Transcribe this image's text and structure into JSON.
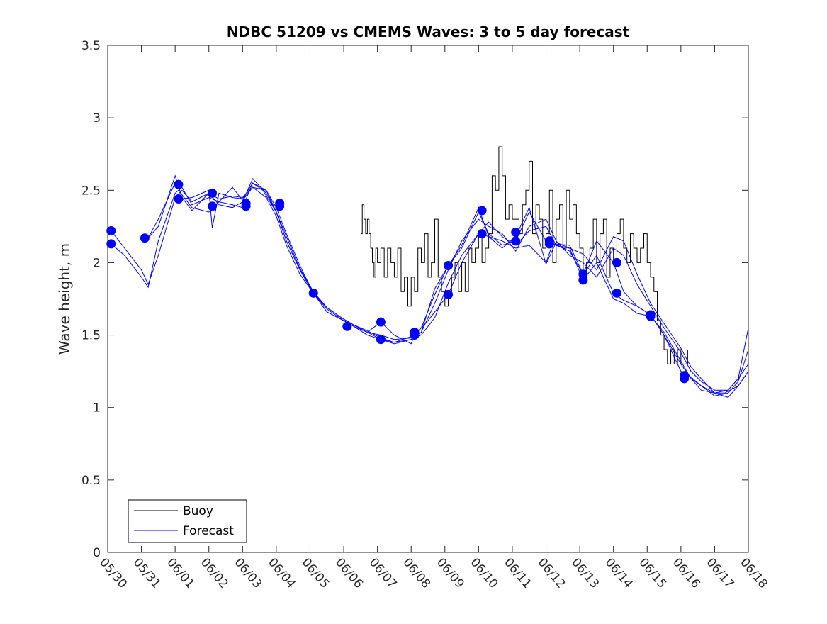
{
  "chart_data": {
    "type": "line",
    "title": "NDBC 51209 vs CMEMS Waves: 3 to 5 day forecast",
    "xlabel": "",
    "ylabel": "Wave height, m",
    "x_tick_labels": [
      "05/30",
      "05/31",
      "06/01",
      "06/02",
      "06/03",
      "06/04",
      "06/05",
      "06/06",
      "06/07",
      "06/08",
      "06/09",
      "06/10",
      "06/11",
      "06/12",
      "06/13",
      "06/14",
      "06/15",
      "06/16",
      "06/17",
      "06/18"
    ],
    "y_ticks": [
      0,
      0.5,
      1,
      1.5,
      2,
      2.5,
      3,
      3.5
    ],
    "y_tick_labels": [
      "0",
      "0.5",
      "1",
      "1.5",
      "2",
      "2.5",
      "3",
      "3.5"
    ],
    "xlim": [
      0,
      19
    ],
    "ylim": [
      0,
      3.5
    ],
    "grid": false,
    "legend_position": "bottom-left",
    "legend": [
      {
        "label": "Buoy",
        "color": "#000000"
      },
      {
        "label": "Forecast",
        "color": "#0000ff"
      }
    ],
    "colors": {
      "buoy": "#000000",
      "forecast": "#0000ff"
    },
    "series": [
      {
        "name": "Buoy",
        "style": "line",
        "x": [
          7.5,
          7.55,
          7.6,
          7.65,
          7.7,
          7.75,
          7.8,
          7.85,
          7.9,
          7.95,
          8.0,
          8.1,
          8.2,
          8.3,
          8.4,
          8.5,
          8.6,
          8.7,
          8.8,
          8.9,
          9.0,
          9.1,
          9.2,
          9.3,
          9.4,
          9.5,
          9.6,
          9.7,
          9.8,
          9.9,
          10.0,
          10.1,
          10.2,
          10.3,
          10.4,
          10.5,
          10.6,
          10.7,
          10.8,
          10.9,
          11.0,
          11.1,
          11.2,
          11.3,
          11.4,
          11.5,
          11.6,
          11.7,
          11.8,
          11.9,
          12.0,
          12.1,
          12.2,
          12.3,
          12.4,
          12.5,
          12.6,
          12.7,
          12.8,
          12.9,
          13.0,
          13.1,
          13.2,
          13.3,
          13.4,
          13.5,
          13.6,
          13.7,
          13.8,
          13.9,
          14.0,
          14.1,
          14.2,
          14.3,
          14.4,
          14.5,
          14.6,
          14.7,
          14.8,
          14.9,
          15.0,
          15.1,
          15.2,
          15.3,
          15.4,
          15.5,
          15.6,
          15.7,
          15.8,
          15.9,
          16.0,
          16.1,
          16.2,
          16.3,
          16.4,
          16.5,
          16.6,
          16.7,
          16.8,
          16.9,
          17.0,
          17.1,
          17.2
        ],
        "y": [
          2.2,
          2.4,
          2.3,
          2.2,
          2.3,
          2.2,
          2.1,
          2.0,
          1.9,
          2.1,
          2.0,
          2.1,
          1.9,
          2.1,
          2.0,
          1.9,
          2.1,
          1.8,
          1.9,
          1.7,
          1.9,
          1.8,
          2.1,
          2.0,
          2.2,
          1.9,
          2.0,
          2.3,
          1.9,
          1.8,
          1.7,
          1.8,
          1.9,
          2.0,
          1.8,
          2.0,
          1.8,
          2.1,
          2.0,
          2.1,
          2.2,
          2.0,
          2.1,
          2.2,
          2.6,
          2.5,
          2.8,
          2.6,
          2.3,
          2.4,
          2.3,
          2.3,
          2.2,
          2.4,
          2.5,
          2.7,
          2.2,
          2.4,
          2.3,
          2.1,
          2.2,
          2.5,
          2.0,
          2.3,
          2.4,
          2.1,
          2.5,
          2.3,
          2.4,
          2.2,
          2.1,
          1.9,
          2.0,
          2.1,
          2.3,
          2.0,
          2.2,
          2.3,
          1.9,
          2.1,
          2.0,
          2.2,
          2.3,
          2.1,
          2.0,
          2.2,
          2.1,
          2.0,
          2.1,
          2.2,
          2.0,
          1.9,
          1.8,
          1.6,
          1.5,
          1.4,
          1.3,
          1.4,
          1.3,
          1.4,
          1.3,
          1.3,
          1.4
        ]
      },
      {
        "name": "Forecast",
        "style": "line",
        "x": [
          0.1,
          0.5,
          1.0,
          1.2,
          1.5,
          2.0,
          2.2,
          2.5,
          3.0,
          3.3,
          3.7,
          4.0,
          4.3,
          4.7,
          5.0,
          5.3,
          5.7,
          6.1,
          6.5,
          7.0,
          7.3,
          7.7,
          8.1,
          8.5,
          9.0,
          9.3,
          9.7,
          10.1,
          10.5,
          11.0,
          11.3,
          11.7,
          12.1,
          12.5,
          13.0,
          13.3,
          13.7,
          14.1,
          14.5,
          15.0,
          15.3,
          15.7,
          16.1,
          16.5,
          17.0,
          17.3,
          17.6,
          18.0,
          18.4,
          18.7,
          19.0
        ],
        "y": [
          2.22,
          2.1,
          1.95,
          1.85,
          2.05,
          2.45,
          2.5,
          2.42,
          2.48,
          2.44,
          2.46,
          2.45,
          2.52,
          2.5,
          2.35,
          2.15,
          1.95,
          1.79,
          1.66,
          1.6,
          1.56,
          1.52,
          1.5,
          1.47,
          1.48,
          1.5,
          1.62,
          1.86,
          2.05,
          2.2,
          2.28,
          2.18,
          2.12,
          2.22,
          2.25,
          2.12,
          2.1,
          2.06,
          1.95,
          2.18,
          2.15,
          1.92,
          1.72,
          1.58,
          1.41,
          1.28,
          1.2,
          1.1,
          1.07,
          1.15,
          1.25
        ]
      },
      {
        "name": "Forecast",
        "style": "line",
        "x": [
          0.1,
          0.5,
          1.0,
          1.2,
          1.5,
          2.0,
          2.2,
          2.5,
          3.0,
          3.3,
          3.7,
          4.0,
          4.3,
          4.7,
          5.0,
          5.3,
          5.7,
          6.1,
          6.5,
          7.0,
          7.3,
          7.7,
          8.1,
          8.5,
          9.0,
          9.3,
          9.7,
          10.1,
          10.5,
          11.0,
          11.3,
          11.7,
          12.1,
          12.5,
          13.0,
          13.3,
          13.7,
          14.1,
          14.5,
          15.0,
          15.3,
          15.7,
          16.1,
          16.5,
          17.0,
          17.3,
          17.6,
          18.0,
          18.4,
          18.7,
          19.0
        ],
        "y": [
          2.13,
          2.05,
          1.9,
          1.83,
          2.15,
          2.48,
          2.52,
          2.4,
          2.45,
          2.42,
          2.52,
          2.43,
          2.52,
          2.45,
          2.32,
          2.12,
          1.92,
          1.79,
          1.69,
          1.61,
          1.57,
          1.53,
          1.48,
          1.45,
          1.47,
          1.52,
          1.72,
          1.95,
          2.15,
          2.3,
          2.25,
          2.2,
          2.08,
          2.25,
          2.3,
          2.15,
          2.05,
          2.0,
          1.9,
          2.1,
          2.05,
          1.85,
          1.7,
          1.55,
          1.38,
          1.25,
          1.18,
          1.12,
          1.12,
          1.2,
          1.55
        ]
      },
      {
        "name": "Forecast",
        "style": "line",
        "x": [
          1.2,
          1.5,
          2.0,
          2.2,
          2.5,
          3.0,
          3.3,
          3.7,
          4.0,
          4.3,
          4.7,
          5.0,
          5.3,
          5.7,
          6.1,
          6.5,
          7.0,
          7.3,
          7.7,
          8.1,
          8.5,
          9.0,
          9.3,
          9.7,
          10.1,
          10.5,
          11.0,
          11.3,
          11.7,
          12.1,
          12.5,
          13.0,
          13.3,
          13.7,
          14.1,
          14.5,
          15.0,
          15.3,
          15.7,
          16.1,
          16.5,
          17.0,
          17.3,
          17.6,
          18.0,
          18.4,
          18.7,
          19.0
        ],
        "y": [
          2.17,
          2.3,
          2.55,
          2.47,
          2.38,
          2.35,
          2.42,
          2.4,
          2.38,
          2.55,
          2.5,
          2.38,
          2.2,
          1.98,
          1.79,
          1.68,
          1.6,
          1.56,
          1.5,
          1.47,
          1.45,
          1.49,
          1.55,
          1.78,
          1.98,
          2.1,
          2.35,
          2.2,
          2.12,
          2.15,
          2.35,
          2.15,
          2.12,
          2.08,
          1.92,
          2.05,
          1.79,
          1.74,
          1.7,
          1.64,
          1.5,
          1.3,
          1.2,
          1.15,
          1.08,
          1.1,
          1.18,
          1.4
        ]
      },
      {
        "name": "Forecast",
        "style": "line",
        "x": [
          1.2,
          1.5,
          2.0,
          2.2,
          2.5,
          3.0,
          3.3,
          3.7,
          4.0,
          4.3,
          4.7,
          5.0,
          5.3,
          5.7,
          6.1,
          6.5,
          7.0,
          7.3,
          7.7,
          8.1,
          8.5,
          9.0,
          9.3,
          9.7,
          10.1,
          10.5,
          11.0,
          11.3,
          11.7,
          12.1,
          12.5,
          13.0,
          13.3,
          13.7,
          14.1,
          14.5,
          15.0,
          15.3,
          15.7,
          16.1,
          16.5,
          17.0,
          17.3,
          17.6,
          18.0,
          18.4,
          18.7,
          19.0
        ],
        "y": [
          2.17,
          2.25,
          2.6,
          2.45,
          2.36,
          2.48,
          2.4,
          2.38,
          2.42,
          2.58,
          2.48,
          2.35,
          2.18,
          1.96,
          1.8,
          1.69,
          1.61,
          1.57,
          1.52,
          1.47,
          1.44,
          1.47,
          1.52,
          1.82,
          1.98,
          2.12,
          2.38,
          2.18,
          2.1,
          2.18,
          2.38,
          1.99,
          2.14,
          2.1,
          1.88,
          2.0,
          1.75,
          1.72,
          1.65,
          1.63,
          1.52,
          1.32,
          1.2,
          1.12,
          1.1,
          1.12,
          1.2,
          1.3
        ]
      },
      {
        "name": "Forecast",
        "style": "line",
        "x": [
          2.2,
          2.5,
          3.0,
          3.1,
          3.3,
          3.7,
          4.0,
          4.3,
          4.6,
          5.0,
          5.3,
          5.7,
          6.1,
          6.5,
          7.0,
          7.3,
          7.7,
          8.1,
          8.5,
          9.0,
          9.1,
          9.5,
          10.1,
          10.5,
          11.0,
          11.3,
          11.7,
          12.1,
          12.5,
          13.0,
          13.2,
          13.7,
          14.1,
          14.5,
          15.0,
          15.3,
          15.7,
          16.1,
          16.5,
          17.0,
          17.3,
          17.6,
          18.0,
          18.3,
          18.7,
          19.0
        ],
        "y": [
          2.44,
          2.45,
          2.5,
          2.24,
          2.48,
          2.45,
          2.44,
          2.55,
          2.5,
          2.35,
          2.15,
          1.95,
          1.79,
          1.66,
          1.6,
          1.56,
          1.52,
          1.59,
          1.5,
          1.44,
          1.5,
          1.6,
          1.78,
          2.0,
          2.2,
          2.18,
          2.15,
          2.1,
          2.12,
          2.0,
          2.13,
          2.12,
          1.92,
          2.15,
          2.0,
          1.8,
          1.7,
          1.64,
          1.5,
          1.25,
          1.21,
          1.15,
          1.1,
          1.1,
          1.15,
          1.25
        ]
      },
      {
        "name": "",
        "style": "markers",
        "x": [
          0.1,
          0.1,
          1.1,
          2.1,
          2.1,
          3.1,
          3.1,
          4.1,
          4.1,
          5.1,
          5.1,
          6.1,
          7.1,
          8.1,
          8.1,
          9.1,
          9.1,
          10.1,
          10.1,
          11.1,
          11.1,
          12.1,
          12.1,
          13.1,
          13.1,
          14.1,
          14.1,
          15.1,
          15.1,
          16.1,
          16.1,
          17.1,
          17.1
        ],
        "y": [
          2.22,
          2.13,
          2.17,
          2.54,
          2.44,
          2.48,
          2.39,
          2.41,
          2.39,
          2.41,
          2.39,
          1.79,
          1.56,
          1.59,
          1.47,
          1.52,
          1.5,
          1.98,
          1.78,
          2.36,
          2.2,
          2.21,
          2.15,
          2.15,
          2.13,
          1.92,
          1.88,
          2.0,
          1.79,
          1.64,
          1.63,
          1.22,
          1.2
        ]
      }
    ]
  }
}
